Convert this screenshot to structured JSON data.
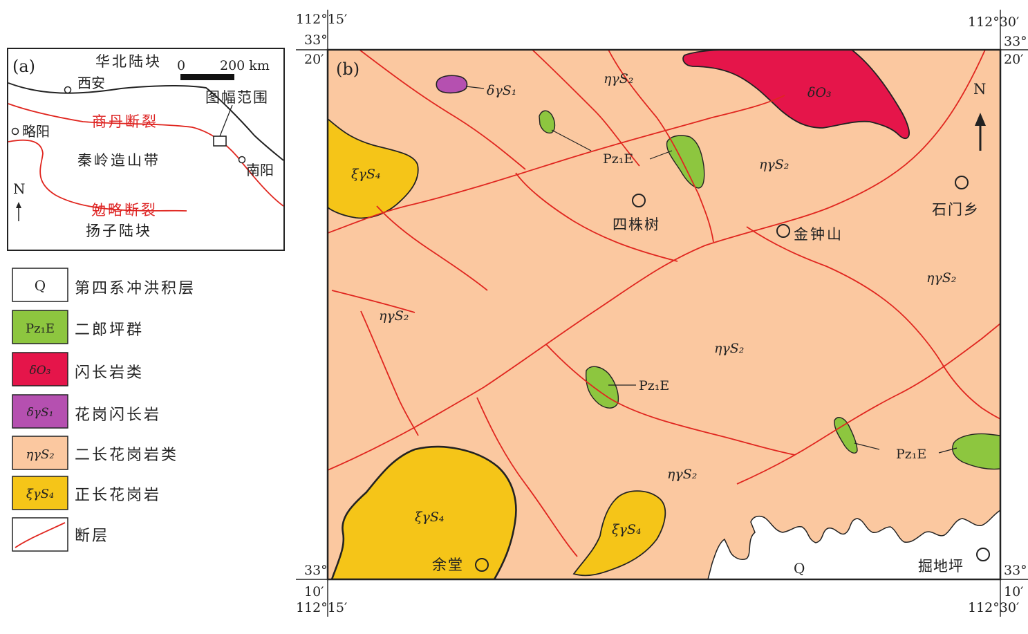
{
  "inset": {
    "panel_label": "(a)",
    "north_china_block": "华北陆块",
    "scale_start": "0",
    "scale_end": "200 km",
    "xian": "西安",
    "map_extent": "图幅范围",
    "shangdan_fault": "商丹断裂",
    "lueyang": "略阳",
    "qinling_belt": "秦岭造山带",
    "nanyang": "南阳",
    "north": "N",
    "mianlue_fault": "勉略断裂",
    "yangtze_block": "扬子陆块"
  },
  "legend": {
    "items": [
      {
        "symbol": "Q",
        "label": "第四系冲洪积层",
        "color": "#ffffff"
      },
      {
        "symbol": "Pz₁E",
        "label": "二郎坪群",
        "color": "#8dc63f"
      },
      {
        "symbol": "δO₃",
        "label": "闪长岩类",
        "color": "#e5154a"
      },
      {
        "symbol": "δγS₁",
        "label": "花岗闪长岩",
        "color": "#b550b0"
      },
      {
        "symbol": "ηγS₂",
        "label": "二长花岗岩类",
        "color": "#fbc8a0"
      },
      {
        "symbol": "ξγS₄",
        "label": "正长花岗岩",
        "color": "#f5c518"
      },
      {
        "symbol": "",
        "label": "断层",
        "color": "#e0261f"
      }
    ]
  },
  "main_map": {
    "panel_label": "(b)",
    "coords": {
      "tl_lon": "112°15′",
      "tl_lat_deg": "33°",
      "tl_lat_min": "20′",
      "tr_lon": "112°30′",
      "tr_lat_deg": "33°",
      "tr_lat_min": "20′",
      "bl_lon": "112°15′",
      "bl_lat_deg": "33°",
      "bl_lat_min": "10′",
      "br_lon": "112°30′",
      "br_lat_deg": "33°",
      "br_lat_min": "10′"
    },
    "north": "N",
    "units": {
      "dgs1": "δγS₁",
      "do3": "δO₃",
      "ngs2": "ηγS₂",
      "xgs4": "ξγS₄",
      "pz1e": "Pz₁E",
      "q": "Q"
    },
    "places": {
      "sizhushu": "四株树",
      "jinzhongshan": "金钟山",
      "shimenxiang": "石门乡",
      "yutang": "余堂",
      "judiping": "掘地坪"
    }
  }
}
